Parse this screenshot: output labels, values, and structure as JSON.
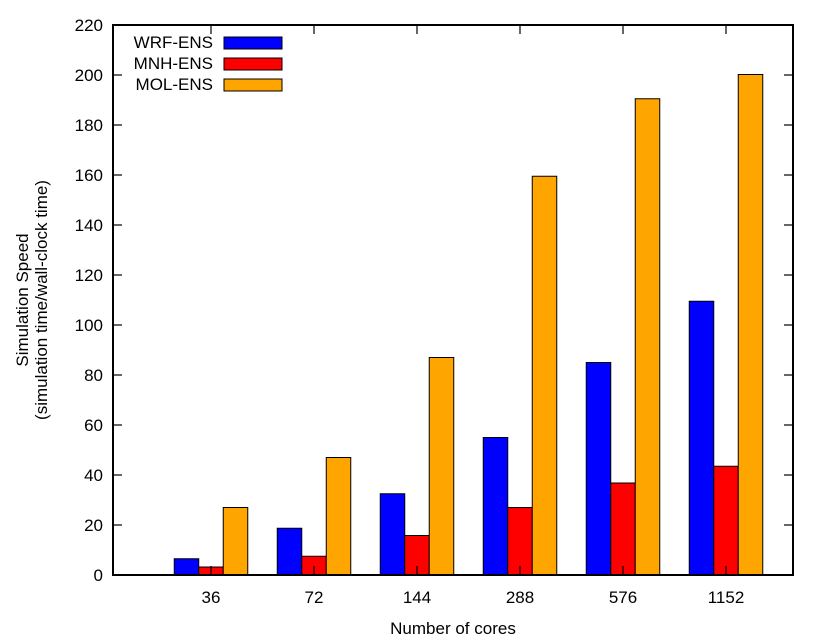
{
  "chart_data": {
    "type": "bar",
    "title": "",
    "xlabel": "Number of cores",
    "ylabel_line1": "Simulation Speed",
    "ylabel_line2": "(simulation time/wall-clock time)",
    "categories": [
      "36",
      "72",
      "144",
      "288",
      "576",
      "1152"
    ],
    "ylim": [
      0,
      220
    ],
    "yticks": [
      0,
      20,
      40,
      60,
      80,
      100,
      120,
      140,
      160,
      180,
      200,
      220
    ],
    "grid": false,
    "legend_position": "top-left",
    "series": [
      {
        "name": "WRF-ENS",
        "color": "#0000ff",
        "values": [
          6.5,
          18.7,
          32.5,
          55,
          85,
          109.5
        ]
      },
      {
        "name": "MNH-ENS",
        "color": "#ff0000",
        "values": [
          3.2,
          7.5,
          15.8,
          27,
          36.8,
          43.5
        ]
      },
      {
        "name": "MOL-ENS",
        "color": "#ffa500",
        "values": [
          27,
          47,
          87,
          159.5,
          190.5,
          200.2
        ]
      }
    ]
  }
}
